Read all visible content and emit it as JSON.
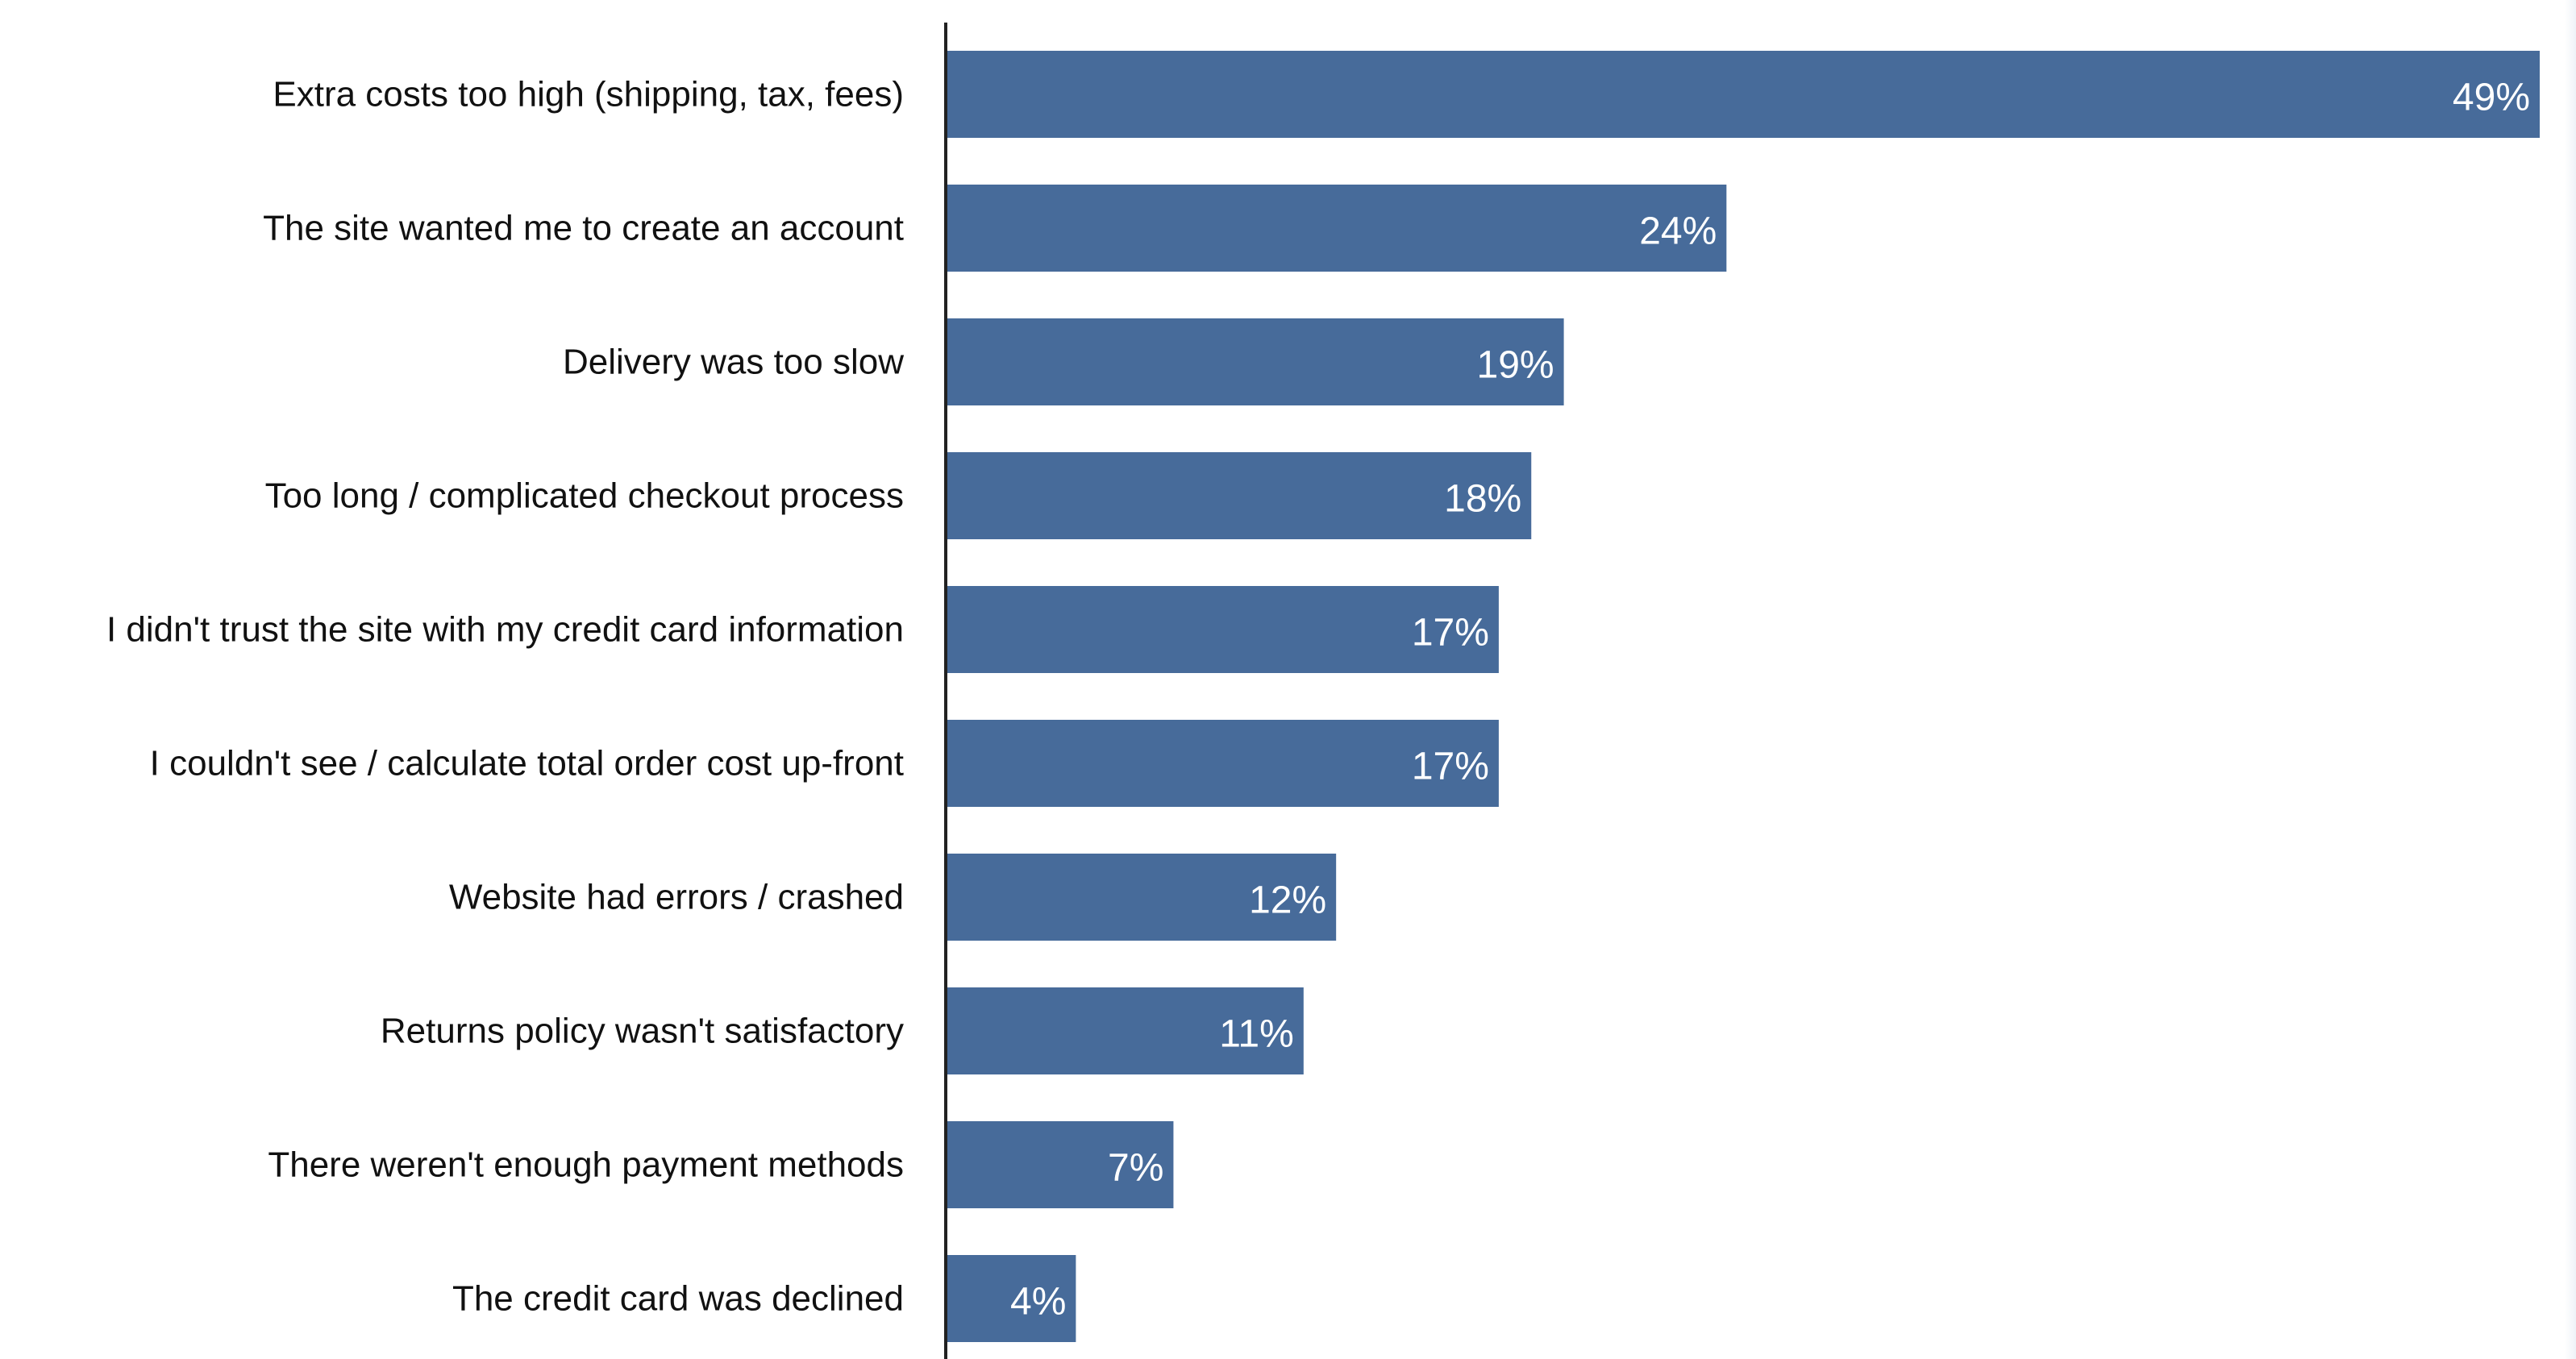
{
  "chart_data": {
    "type": "bar",
    "orientation": "horizontal",
    "title": "",
    "xlabel": "",
    "ylabel": "",
    "categories": [
      "Extra costs too high (shipping, tax, fees)",
      "The site wanted me to create an account",
      "Delivery was too slow",
      "Too long / complicated checkout process",
      "I didn't trust the site with my credit card information",
      "I couldn't see / calculate total order cost up-front",
      "Website had errors / crashed",
      "Returns policy wasn't satisfactory",
      "There weren't enough payment methods",
      "The credit card was declined"
    ],
    "values": [
      49,
      24,
      19,
      18,
      17,
      17,
      12,
      11,
      7,
      4
    ],
    "value_labels": [
      "49%",
      "24%",
      "19%",
      "18%",
      "17%",
      "17%",
      "12%",
      "11%",
      "7%",
      "4%"
    ],
    "xlim": [
      0,
      49
    ],
    "grid": false,
    "legend": "none",
    "bar_color": "#476b9a",
    "label_color": "#111111",
    "value_label_color": "#ffffff",
    "axis_color": "#222222"
  }
}
